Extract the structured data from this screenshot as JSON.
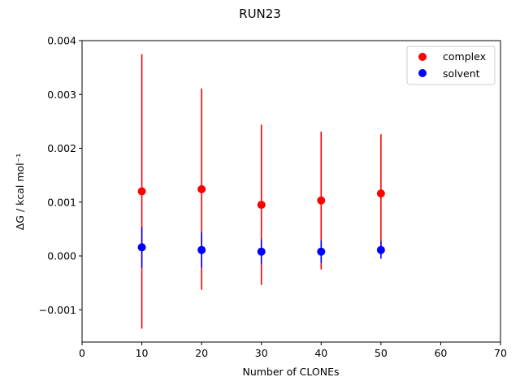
{
  "chart_data": {
    "type": "scatter",
    "title": "RUN23",
    "xlabel": "Number of CLONEs",
    "ylabel": "ΔG / kcal mol⁻¹",
    "xlim": [
      0,
      70
    ],
    "ylim": [
      -0.0016,
      0.004
    ],
    "xticks": [
      0,
      10,
      20,
      30,
      40,
      50,
      60,
      70
    ],
    "xtick_labels": [
      "0",
      "10",
      "20",
      "30",
      "40",
      "50",
      "60",
      "70"
    ],
    "yticks": [
      -0.001,
      0.0,
      0.001,
      0.002,
      0.003,
      0.004
    ],
    "ytick_labels": [
      "−0.001",
      "0.000",
      "0.001",
      "0.002",
      "0.003",
      "0.004"
    ],
    "grid": false,
    "legend_position": "top-right",
    "series": [
      {
        "name": "complex",
        "color": "#ff0000",
        "x": [
          10,
          20,
          30,
          40,
          50
        ],
        "y": [
          0.0012,
          0.00124,
          0.00095,
          0.00103,
          0.00116
        ],
        "yerr": [
          0.00255,
          0.00187,
          0.00149,
          0.00128,
          0.0011
        ]
      },
      {
        "name": "solvent",
        "color": "#0000ff",
        "x": [
          10,
          20,
          30,
          40,
          50
        ],
        "y": [
          0.00016,
          0.00011,
          8e-05,
          8e-05,
          0.00011
        ],
        "yerr": [
          0.00038,
          0.00033,
          0.00023,
          0.00021,
          0.00016
        ]
      }
    ]
  }
}
